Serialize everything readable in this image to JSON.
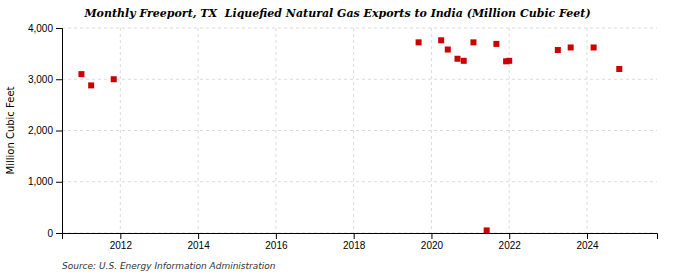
{
  "chart_data": {
    "type": "scatter",
    "title": "Monthly Freeport, TX  Liquefied Natural Gas Exports to India (Million Cubic Feet)",
    "ylabel": "Million Cubic Feet",
    "source": "Source: U.S. Energy Information Administration",
    "x": [
      2011.0,
      2011.25,
      2011.83,
      2019.67,
      2020.25,
      2020.42,
      2020.67,
      2020.83,
      2021.08,
      2021.42,
      2021.67,
      2021.92,
      2022.0,
      2023.25,
      2023.58,
      2024.17,
      2024.83
    ],
    "values": [
      3100,
      2880,
      3000,
      3720,
      3760,
      3580,
      3400,
      3360,
      3720,
      50,
      3690,
      3350,
      3360,
      3570,
      3620,
      3620,
      3200
    ],
    "color": "#cc0000",
    "marker": "square",
    "xlim": [
      2010.5,
      2025.8
    ],
    "ylim": [
      0,
      4000
    ],
    "xticks": [
      2012,
      2014,
      2016,
      2018,
      2020,
      2022,
      2024
    ],
    "yticks": [
      0,
      {
        "value": 1000,
        "label": "1,000"
      },
      {
        "value": 2000,
        "label": "2,000"
      },
      {
        "value": 3000,
        "label": "3,000"
      },
      {
        "value": 4000,
        "label": "4,000"
      }
    ],
    "grid": true
  }
}
